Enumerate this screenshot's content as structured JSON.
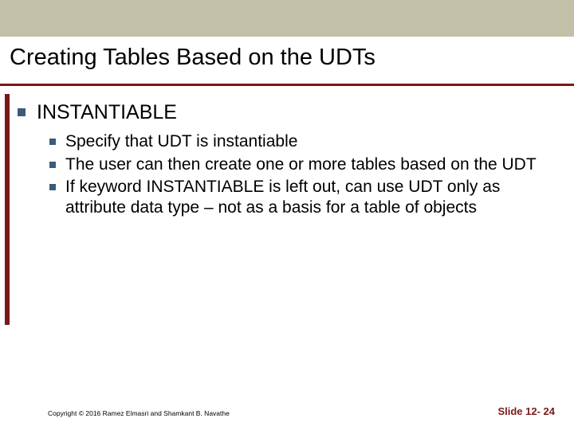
{
  "title": "Creating Tables Based on the UDTs",
  "level1": {
    "text": "INSTANTIABLE"
  },
  "level2": {
    "items": [
      {
        "text": "Specify that UDT is instantiable"
      },
      {
        "text": "The user can then create one or more tables based on the UDT"
      },
      {
        "text": "If keyword INSTANTIABLE is left out, can use UDT only as attribute data type – not as a basis for a table of objects"
      }
    ]
  },
  "footer": {
    "copyright": "Copyright © 2016 Ramez Elmasri and Shamkant B. Navathe",
    "slide_label": "Slide 12- 24"
  },
  "colors": {
    "header_band": "#c2c0a6",
    "accent": "#7a1818",
    "bullet": "#3b5b7a",
    "text": "#000000",
    "background": "#ffffff"
  }
}
